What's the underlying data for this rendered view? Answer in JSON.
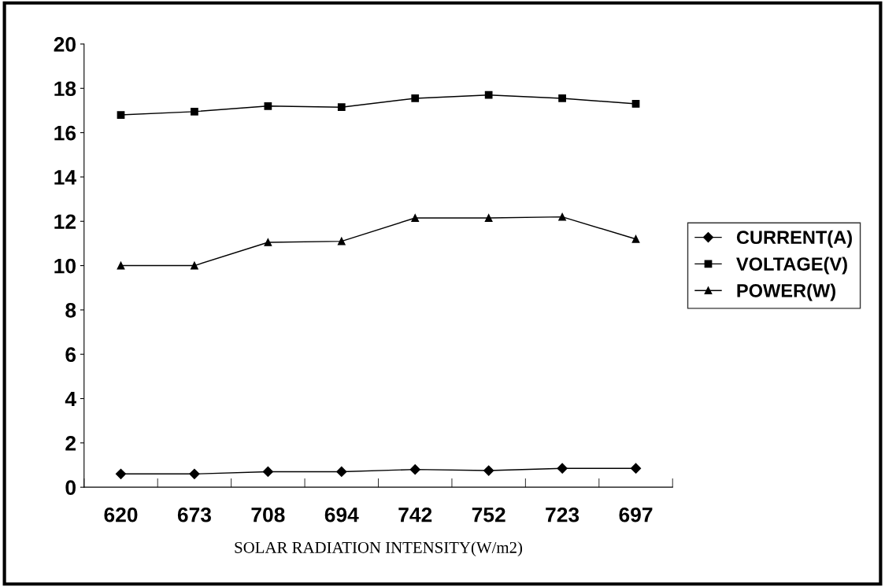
{
  "chart_data": {
    "type": "line",
    "xlabel": "SOLAR RADIATION INTENSITY(W/m2)",
    "categories": [
      "620",
      "673",
      "708",
      "694",
      "742",
      "752",
      "723",
      "697"
    ],
    "series": [
      {
        "name": "CURRENT(A)",
        "color": "#000000",
        "marker": "diamond",
        "values": [
          0.6,
          0.6,
          0.7,
          0.7,
          0.8,
          0.75,
          0.85,
          0.85
        ]
      },
      {
        "name": "VOLTAGE(V)",
        "color": "#000000",
        "marker": "square",
        "values": [
          16.8,
          16.95,
          17.2,
          17.15,
          17.55,
          17.7,
          17.55,
          17.3
        ]
      },
      {
        "name": "POWER(W)",
        "color": "#000000",
        "marker": "triangle",
        "values": [
          10,
          10,
          11.05,
          11.1,
          12.15,
          12.15,
          12.2,
          11.2
        ]
      }
    ],
    "ylim": [
      0,
      20
    ],
    "yticks": [
      0,
      2,
      4,
      6,
      8,
      10,
      12,
      14,
      16,
      18,
      20
    ],
    "grid": false,
    "legend": "right",
    "line_style": "solid"
  }
}
